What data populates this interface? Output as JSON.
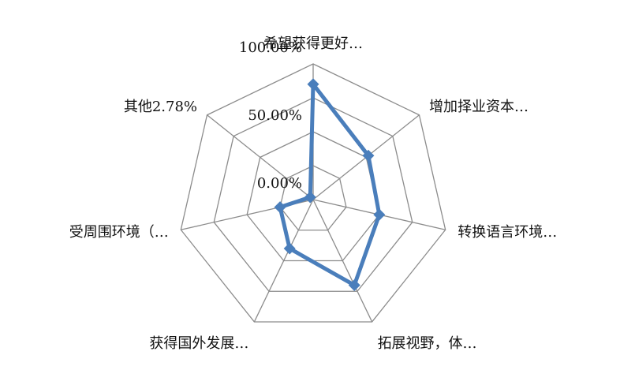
{
  "chart_data": {
    "type": "radar",
    "title": "",
    "categories": [
      "希望获得更好…",
      "增加择业资本…",
      "转换语言环境…",
      "拓展视野，体…",
      "获得国外发展…",
      "受周围环境（…",
      "其他2.78%"
    ],
    "series": [
      {
        "values": [
          85.0,
          52.0,
          50.0,
          70.0,
          40.0,
          25.0,
          2.78
        ],
        "color": "#4a7ebb"
      }
    ],
    "rlim": [
      0,
      100
    ],
    "ticks": [
      {
        "value": 0,
        "label": "0.00%"
      },
      {
        "value": 50,
        "label": "50.00%"
      },
      {
        "value": 100,
        "label": "100.00%"
      }
    ],
    "grid": true,
    "legend": "none"
  }
}
